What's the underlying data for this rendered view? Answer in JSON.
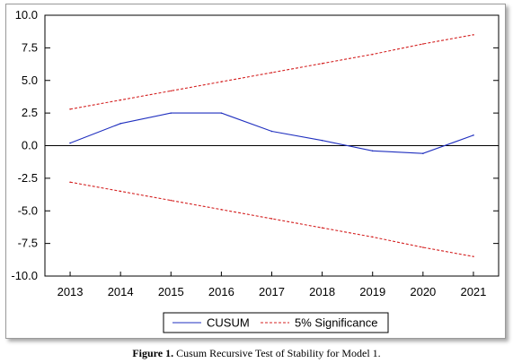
{
  "chart_data": {
    "type": "line",
    "x": [
      "2013",
      "2014",
      "2015",
      "2016",
      "2017",
      "2018",
      "2019",
      "2020",
      "2021"
    ],
    "series": [
      {
        "name": "CUSUM",
        "color": "#1f2fbf",
        "style": "solid",
        "values": [
          0.2,
          1.7,
          2.5,
          2.5,
          1.1,
          0.4,
          -0.4,
          -0.6,
          0.8
        ]
      },
      {
        "name": "5% Significance",
        "color": "#d42020",
        "style": "dashed",
        "values": [
          2.8,
          3.5,
          4.2,
          4.9,
          5.6,
          6.3,
          7.0,
          7.8,
          8.5
        ]
      },
      {
        "name": "5% Significance",
        "color": "#d42020",
        "style": "dashed",
        "legend": false,
        "values": [
          -2.8,
          -3.5,
          -4.2,
          -4.9,
          -5.6,
          -6.3,
          -7.0,
          -7.8,
          -8.5
        ]
      }
    ],
    "yticks": [
      "10.0",
      "7.5",
      "5.0",
      "2.5",
      "0.0",
      "-2.5",
      "-5.0",
      "-7.5",
      "-10.0"
    ],
    "ylim": [
      -10,
      10
    ],
    "zero_line": true,
    "grid": false,
    "legend_position": "bottom-center",
    "legend": [
      "CUSUM",
      "5% Significance"
    ]
  },
  "caption": {
    "label": "Figure 1.",
    "text": " Cusum Recursive Test of Stability for Model 1."
  }
}
